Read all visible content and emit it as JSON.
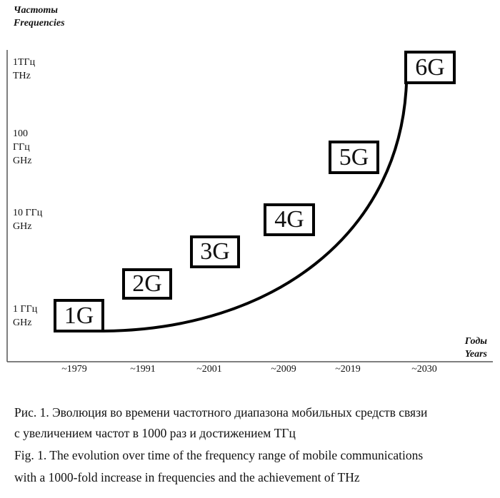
{
  "chart_data": {
    "type": "line",
    "y_axis_title": [
      "Частоты",
      "Frequencies"
    ],
    "x_axis_title": [
      "Годы",
      "Years"
    ],
    "y_ticks": [
      {
        "lines": [
          "1ТГц",
          "THz"
        ]
      },
      {
        "lines": [
          "100",
          "ГГц",
          "GHz"
        ]
      },
      {
        "lines": [
          "10 ГГц",
          "GHz"
        ]
      },
      {
        "lines": [
          "1 ГГц",
          "GHz"
        ]
      }
    ],
    "x_ticks": [
      "~1979",
      "~1991",
      "~2001",
      "~2009",
      "~2019",
      "~2030"
    ],
    "generations": [
      "1G",
      "2G",
      "3G",
      "4G",
      "5G",
      "6G"
    ],
    "curve": "exponential growth from 1 GHz (1G) to 1 THz (6G)"
  },
  "caption": {
    "ru_line1": "Рис. 1. Эволюция во времени частотного диапазона мобильных средств связи",
    "ru_line2": "с увеличением частот в 1000 раз и достижением ТГц",
    "en_line1": "Fig. 1. The evolution over time of the frequency range of mobile communications",
    "en_line2": "with a 1000-fold increase in frequencies and the achievement of THz"
  }
}
